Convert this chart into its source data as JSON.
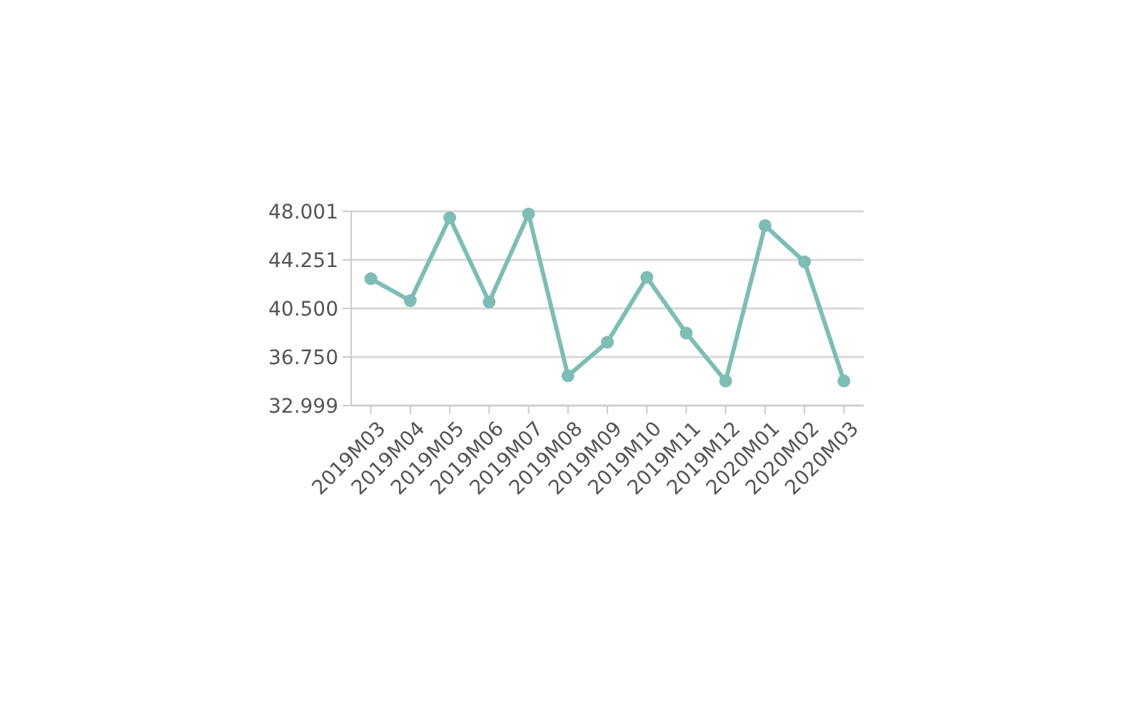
{
  "chart_data": {
    "type": "line",
    "categories": [
      "2019M03",
      "2019M04",
      "2019M05",
      "2019M06",
      "2019M07",
      "2019M08",
      "2019M09",
      "2019M10",
      "2019M11",
      "2019M12",
      "2020M01",
      "2020M02",
      "2020M03"
    ],
    "series": [
      {
        "color": "#7dbdb5",
        "values": [
          42.8,
          41.1,
          47.5,
          41.0,
          47.8,
          35.3,
          37.9,
          42.9,
          38.6,
          34.9,
          46.9,
          44.1,
          34.9
        ]
      }
    ],
    "ylim": [
      32.999,
      48.001
    ],
    "yticks": [
      32.999,
      {
        "value": 36.75,
        "label": "36.750"
      },
      {
        "value": 40.5,
        "label": "40.500"
      },
      44.251,
      48.001
    ],
    "grid": "y",
    "marker": "circle"
  }
}
